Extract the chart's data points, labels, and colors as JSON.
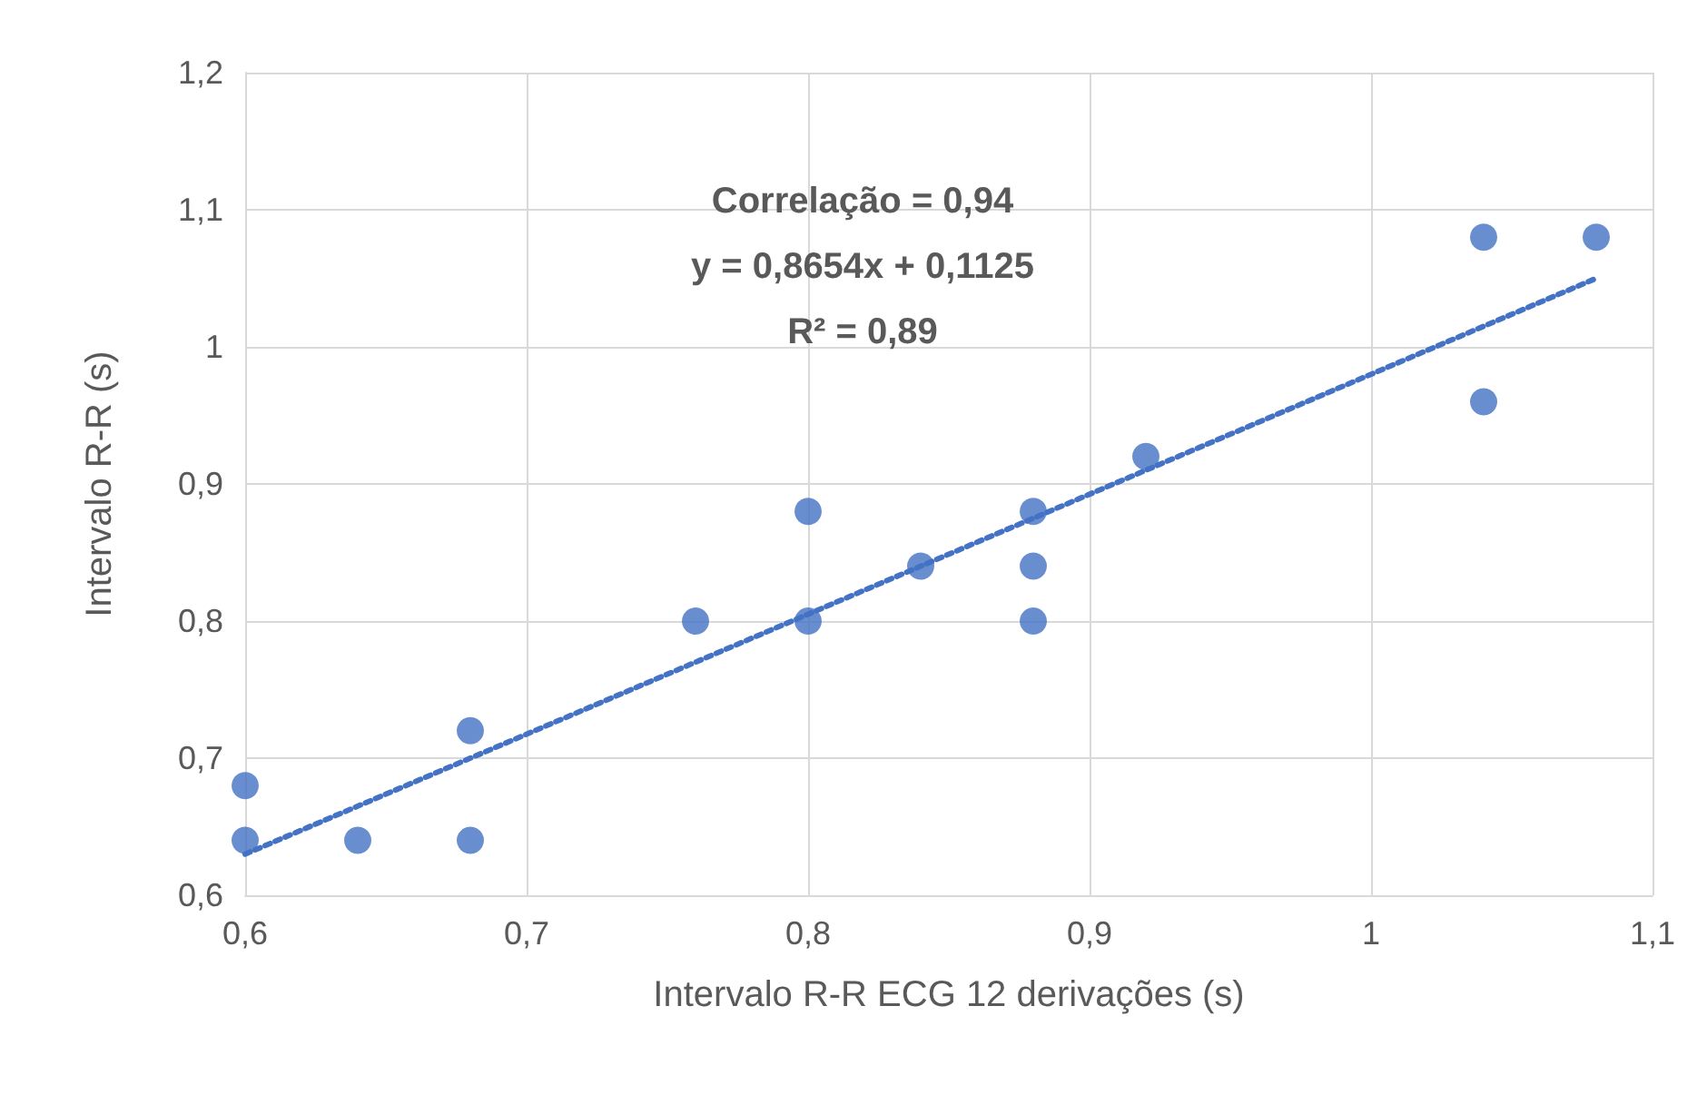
{
  "chart_data": {
    "type": "scatter",
    "xlabel": "Intervalo R-R ECG 12 derivações (s)",
    "ylabel": "Intervalo R-R (s)",
    "annotations": [
      "Correlação = 0,94",
      "y = 0,8654x + 0,1125",
      "R² = 0,89"
    ],
    "series": [
      {
        "color": "#4472c4",
        "marker": "circle",
        "x": [
          0.6,
          0.6,
          0.64,
          0.68,
          0.68,
          0.76,
          0.8,
          0.8,
          0.84,
          0.88,
          0.88,
          0.88,
          0.92,
          1.04,
          1.04,
          1.08
        ],
        "values": [
          0.68,
          0.64,
          0.64,
          0.72,
          0.64,
          0.8,
          0.88,
          0.8,
          0.84,
          0.88,
          0.84,
          0.8,
          0.92,
          1.08,
          0.96,
          1.08
        ]
      },
      {
        "type": "line",
        "color": "#4472c4",
        "marker": "none",
        "line_style": "dotted",
        "x": [
          0.6,
          1.08
        ],
        "values": [
          0.63,
          1.05
        ]
      }
    ],
    "xlim": [
      0.6,
      1.1
    ],
    "xticks": [
      {
        "value": 0.6,
        "label": "0,6"
      },
      {
        "value": 0.7,
        "label": "0,7"
      },
      {
        "value": 0.8,
        "label": "0,8"
      },
      {
        "value": 0.9,
        "label": "0,9"
      },
      {
        "value": 1,
        "label": "1"
      },
      {
        "value": 1.1,
        "label": "1,1"
      }
    ],
    "ylim": [
      0.6,
      1.2
    ],
    "yticks": [
      {
        "value": 0.6,
        "label": "0,6"
      },
      {
        "value": 0.7,
        "label": "0,7"
      },
      {
        "value": 0.8,
        "label": "0,8"
      },
      {
        "value": 0.9,
        "label": "0,9"
      },
      {
        "value": 1,
        "label": "1"
      },
      {
        "value": 1.1,
        "label": "1,1"
      },
      {
        "value": 1.2,
        "label": "1,2"
      }
    ],
    "grid": true
  }
}
